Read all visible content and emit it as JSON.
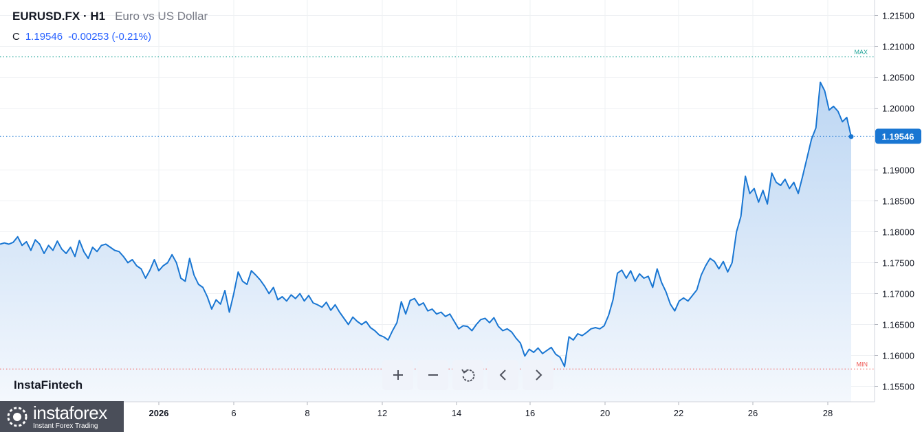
{
  "header": {
    "symbol": "EURUSD.FX · H1",
    "description": "Euro vs US Dollar",
    "close_label": "C",
    "close_value": "1.19546",
    "change": "-0.00253 (-0.21%)"
  },
  "watermark": "InstaFintech",
  "logo": {
    "name": "instaforex",
    "tagline": "Instant Forex Trading"
  },
  "toolbar": {
    "buttons": [
      {
        "name": "zoom-in-button",
        "icon": "plus-icon"
      },
      {
        "name": "zoom-out-button",
        "icon": "minus-icon"
      },
      {
        "name": "reset-button",
        "icon": "refresh-icon"
      },
      {
        "name": "scroll-left-button",
        "icon": "chevron-left-icon"
      },
      {
        "name": "scroll-right-button",
        "icon": "chevron-right-icon"
      }
    ]
  },
  "colors": {
    "line": "#1976d2",
    "fill_top": "#bcd6f3",
    "fill_bottom": "#f4f8fd",
    "current_badge": "#1976d2",
    "max": "#26a69a",
    "min": "#ef5350",
    "grid": "#eef0f3"
  },
  "chart_data": {
    "type": "area",
    "series": [
      {
        "values": [
          1.178,
          1.1782,
          1.178,
          1.1783,
          1.1792,
          1.1778,
          1.1784,
          1.177,
          1.1787,
          1.178,
          1.1765,
          1.1778,
          1.177,
          1.1785,
          1.1772,
          1.1765,
          1.1775,
          1.176,
          1.1786,
          1.1768,
          1.1757,
          1.1775,
          1.1768,
          1.1778,
          1.178,
          1.1775,
          1.177,
          1.1768,
          1.176,
          1.175,
          1.1755,
          1.1745,
          1.174,
          1.1725,
          1.1738,
          1.1755,
          1.1737,
          1.1745,
          1.175,
          1.1763,
          1.175,
          1.1725,
          1.172,
          1.1757,
          1.173,
          1.1715,
          1.171,
          1.1695,
          1.1675,
          1.169,
          1.1683,
          1.1705,
          1.167,
          1.17,
          1.1735,
          1.172,
          1.1715,
          1.1737,
          1.173,
          1.1722,
          1.1712,
          1.17,
          1.171,
          1.169,
          1.1695,
          1.1688,
          1.1698,
          1.1692,
          1.17,
          1.1688,
          1.1697,
          1.1685,
          1.1682,
          1.1678,
          1.1686,
          1.1673,
          1.1682,
          1.167,
          1.166,
          1.165,
          1.1662,
          1.1655,
          1.165,
          1.1655,
          1.1645,
          1.164,
          1.1633,
          1.163,
          1.1625,
          1.164,
          1.1653,
          1.1687,
          1.1667,
          1.1689,
          1.1692,
          1.1681,
          1.1685,
          1.1672,
          1.1675,
          1.1667,
          1.167,
          1.1663,
          1.1667,
          1.1655,
          1.1643,
          1.1648,
          1.1647,
          1.164,
          1.165,
          1.1658,
          1.166,
          1.1653,
          1.1661,
          1.1647,
          1.164,
          1.1643,
          1.1638,
          1.1628,
          1.162,
          1.1599,
          1.161,
          1.1605,
          1.1612,
          1.1603,
          1.1608,
          1.1613,
          1.1602,
          1.1597,
          1.1582,
          1.163,
          1.1625,
          1.1635,
          1.1632,
          1.1637,
          1.1643,
          1.1645,
          1.1643,
          1.1648,
          1.1665,
          1.169,
          1.1733,
          1.1738,
          1.1725,
          1.1737,
          1.172,
          1.1732,
          1.1725,
          1.1728,
          1.171,
          1.174,
          1.1718,
          1.1703,
          1.1683,
          1.1672,
          1.1688,
          1.1693,
          1.1688,
          1.1697,
          1.1706,
          1.173,
          1.1745,
          1.1757,
          1.1752,
          1.174,
          1.1752,
          1.1735,
          1.175,
          1.18,
          1.1825,
          1.189,
          1.1862,
          1.187,
          1.1848,
          1.1867,
          1.1845,
          1.1895,
          1.188,
          1.1875,
          1.1885,
          1.187,
          1.188,
          1.1862,
          1.189,
          1.192,
          1.195,
          1.1968,
          1.2042,
          1.2028,
          1.1997,
          1.2003,
          1.1995,
          1.1978,
          1.1985,
          1.1954
        ]
      }
    ],
    "x_labels": [
      "2026",
      "6",
      "8",
      "12",
      "14",
      "16",
      "20",
      "22",
      "26",
      "28"
    ],
    "y_ticks": [
      "1.21500",
      "1.21000",
      "1.20500",
      "1.20000",
      "1.19000",
      "1.18500",
      "1.18000",
      "1.17500",
      "1.17000",
      "1.16500",
      "1.16000",
      "1.15500"
    ],
    "ylim": [
      1.1525,
      1.2175
    ],
    "max_label": "MAX",
    "min_label": "MIN",
    "max_level": 1.2083,
    "min_level": 1.1578,
    "current_value": "1.19546",
    "current_level": 1.19546,
    "grid": true
  }
}
